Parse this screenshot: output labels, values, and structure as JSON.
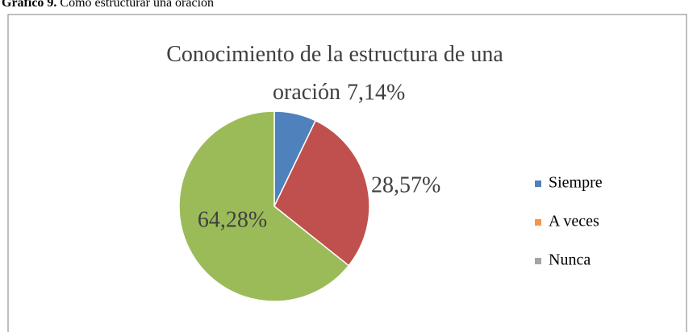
{
  "caption_label": "Gráfico 9.",
  "caption_text": "Cómo estructurar una oración",
  "chart_data": {
    "type": "pie",
    "title": "Conocimiento de la estructura de una oración",
    "categories": [
      "Siempre",
      "A veces",
      "Nunca"
    ],
    "values": [
      7.14,
      28.57,
      64.28
    ],
    "value_labels": [
      "7,14%",
      "28,57%",
      "64,28%"
    ],
    "colors": [
      "#4f81bd",
      "#c0504d",
      "#9bbb59"
    ],
    "legend_colors": [
      "#4f81bd",
      "#f79646",
      "#a5a5a5"
    ],
    "legend": "right"
  }
}
